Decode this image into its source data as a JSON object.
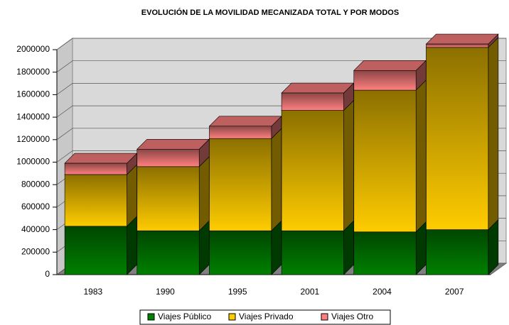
{
  "chart_data": {
    "type": "bar3d_stacked",
    "title": "EVOLUCIÓN DE LA MOVILIDAD MECANIZADA TOTAL Y POR MODOS",
    "categories": [
      "1983",
      "1990",
      "1995",
      "2001",
      "2004",
      "2007"
    ],
    "series": [
      {
        "name": "Viajes Público",
        "color": "#008000",
        "values": [
          430000,
          390000,
          390000,
          390000,
          380000,
          400000
        ]
      },
      {
        "name": "Viajes Privado",
        "color": "#ffcc00",
        "values": [
          460000,
          570000,
          820000,
          1070000,
          1260000,
          1620000
        ]
      },
      {
        "name": "Viajes Otro",
        "color": "#ff8080",
        "values": [
          100000,
          155000,
          110000,
          155000,
          175000,
          30000
        ]
      }
    ],
    "ylim": [
      0,
      2000000
    ],
    "yticks": [
      0,
      200000,
      400000,
      600000,
      800000,
      1000000,
      1200000,
      1400000,
      1600000,
      1800000,
      2000000
    ],
    "grid": true,
    "legend": "bottom"
  }
}
